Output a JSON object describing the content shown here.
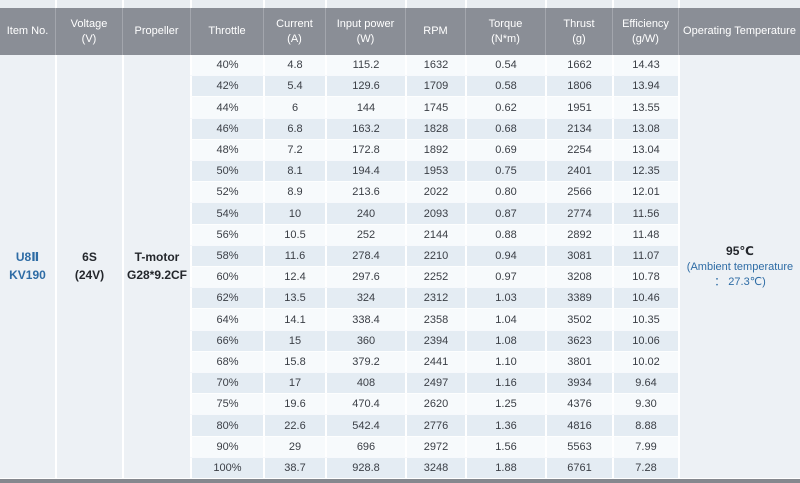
{
  "colors": {
    "header_bg": "#8a8e96",
    "header_text": "#ffffff",
    "row_light": "#f7fafc",
    "row_dark": "#e4ecf3",
    "side_bg": "#edf1f5",
    "accent_blue": "#2e6ca5",
    "bottom_bar": "#85888e"
  },
  "chart_data": {
    "type": "table",
    "columns": [
      {
        "id": "item_no",
        "label": "Item No.",
        "unit": ""
      },
      {
        "id": "voltage",
        "label": "Voltage",
        "unit": "(V)"
      },
      {
        "id": "propeller",
        "label": "Propeller",
        "unit": ""
      },
      {
        "id": "throttle",
        "label": "Throttle",
        "unit": ""
      },
      {
        "id": "current",
        "label": "Current",
        "unit": "(A)"
      },
      {
        "id": "input_power",
        "label": "Input power",
        "unit": "(W)"
      },
      {
        "id": "rpm",
        "label": "RPM",
        "unit": ""
      },
      {
        "id": "torque",
        "label": "Torque",
        "unit": "(N*m)"
      },
      {
        "id": "thrust",
        "label": "Thrust",
        "unit": "(g)"
      },
      {
        "id": "efficiency",
        "label": "Efficiency",
        "unit": "(g/W)"
      },
      {
        "id": "operating_temperature",
        "label": "Operating Temperature",
        "unit": ""
      }
    ],
    "merged": {
      "item_no": [
        "U8Ⅱ",
        "KV190"
      ],
      "voltage": [
        "6S",
        "(24V)"
      ],
      "propeller": [
        "T-motor",
        "G28*9.2CF"
      ],
      "operating_temperature": {
        "value": "95℃",
        "note": [
          "(Ambient temperature",
          "： 27.3℃)"
        ]
      }
    },
    "rows": [
      [
        "40%",
        "4.8",
        "115.2",
        "1632",
        "0.54",
        "1662",
        "14.43"
      ],
      [
        "42%",
        "5.4",
        "129.6",
        "1709",
        "0.58",
        "1806",
        "13.94"
      ],
      [
        "44%",
        "6",
        "144",
        "1745",
        "0.62",
        "1951",
        "13.55"
      ],
      [
        "46%",
        "6.8",
        "163.2",
        "1828",
        "0.68",
        "2134",
        "13.08"
      ],
      [
        "48%",
        "7.2",
        "172.8",
        "1892",
        "0.69",
        "2254",
        "13.04"
      ],
      [
        "50%",
        "8.1",
        "194.4",
        "1953",
        "0.75",
        "2401",
        "12.35"
      ],
      [
        "52%",
        "8.9",
        "213.6",
        "2022",
        "0.80",
        "2566",
        "12.01"
      ],
      [
        "54%",
        "10",
        "240",
        "2093",
        "0.87",
        "2774",
        "11.56"
      ],
      [
        "56%",
        "10.5",
        "252",
        "2144",
        "0.88",
        "2892",
        "11.48"
      ],
      [
        "58%",
        "11.6",
        "278.4",
        "2210",
        "0.94",
        "3081",
        "11.07"
      ],
      [
        "60%",
        "12.4",
        "297.6",
        "2252",
        "0.97",
        "3208",
        "10.78"
      ],
      [
        "62%",
        "13.5",
        "324",
        "2312",
        "1.03",
        "3389",
        "10.46"
      ],
      [
        "64%",
        "14.1",
        "338.4",
        "2358",
        "1.04",
        "3502",
        "10.35"
      ],
      [
        "66%",
        "15",
        "360",
        "2394",
        "1.08",
        "3623",
        "10.06"
      ],
      [
        "68%",
        "15.8",
        "379.2",
        "2441",
        "1.10",
        "3801",
        "10.02"
      ],
      [
        "70%",
        "17",
        "408",
        "2497",
        "1.16",
        "3934",
        "9.64"
      ],
      [
        "75%",
        "19.6",
        "470.4",
        "2620",
        "1.25",
        "4376",
        "9.30"
      ],
      [
        "80%",
        "22.6",
        "542.4",
        "2776",
        "1.36",
        "4816",
        "8.88"
      ],
      [
        "90%",
        "29",
        "696",
        "2972",
        "1.56",
        "5563",
        "7.99"
      ],
      [
        "100%",
        "38.7",
        "928.8",
        "3248",
        "1.88",
        "6761",
        "7.28"
      ]
    ]
  }
}
